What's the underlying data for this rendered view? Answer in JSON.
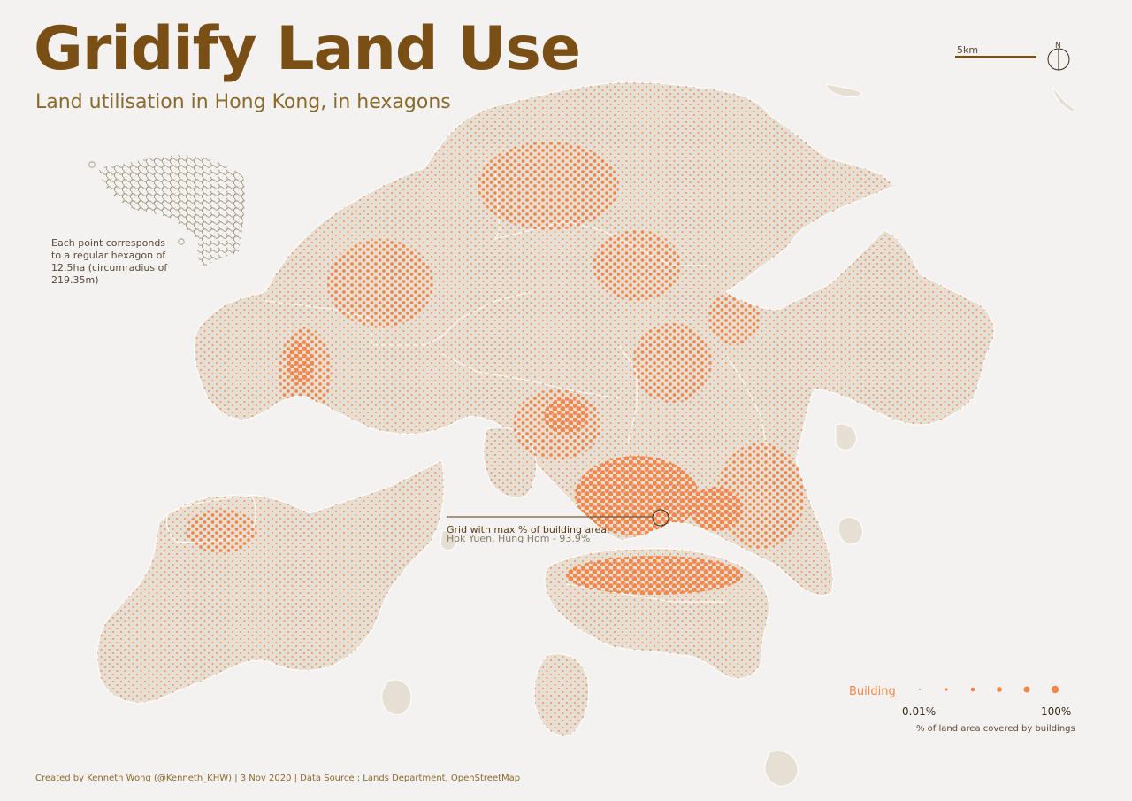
{
  "title": "Gridify Land Use",
  "subtitle": "Land utilisation in Hong Kong, in hexagons",
  "inset_note": "Each point corresponds to a regular hexagon of 12.5ha (circumradius of 219.35m)",
  "scale_label": "5km",
  "north_label": "N",
  "annotation": {
    "heading": "Grid with max % of building area:",
    "detail": "Hok Yuen, Hung Hom - 93.9%"
  },
  "legend": {
    "title": "Building",
    "min_label": "0.01%",
    "max_label": "100%",
    "caption": "% of land area covered by buildings",
    "steps": [
      0.01,
      20,
      40,
      60,
      80,
      100
    ]
  },
  "credit": "Created by Kenneth Wong (@Kenneth_KHW) | 3 Nov 2020 | Data Source : Lands Department, OpenStreetMap",
  "colors": {
    "background": "#f3f2f0",
    "land": "#e6e0d4",
    "land_border": "#ffffff",
    "building": "#f2874e",
    "title": "#7a4f16",
    "subtitle": "#8a6a2c",
    "hex_outline": "#9a8a70"
  }
}
